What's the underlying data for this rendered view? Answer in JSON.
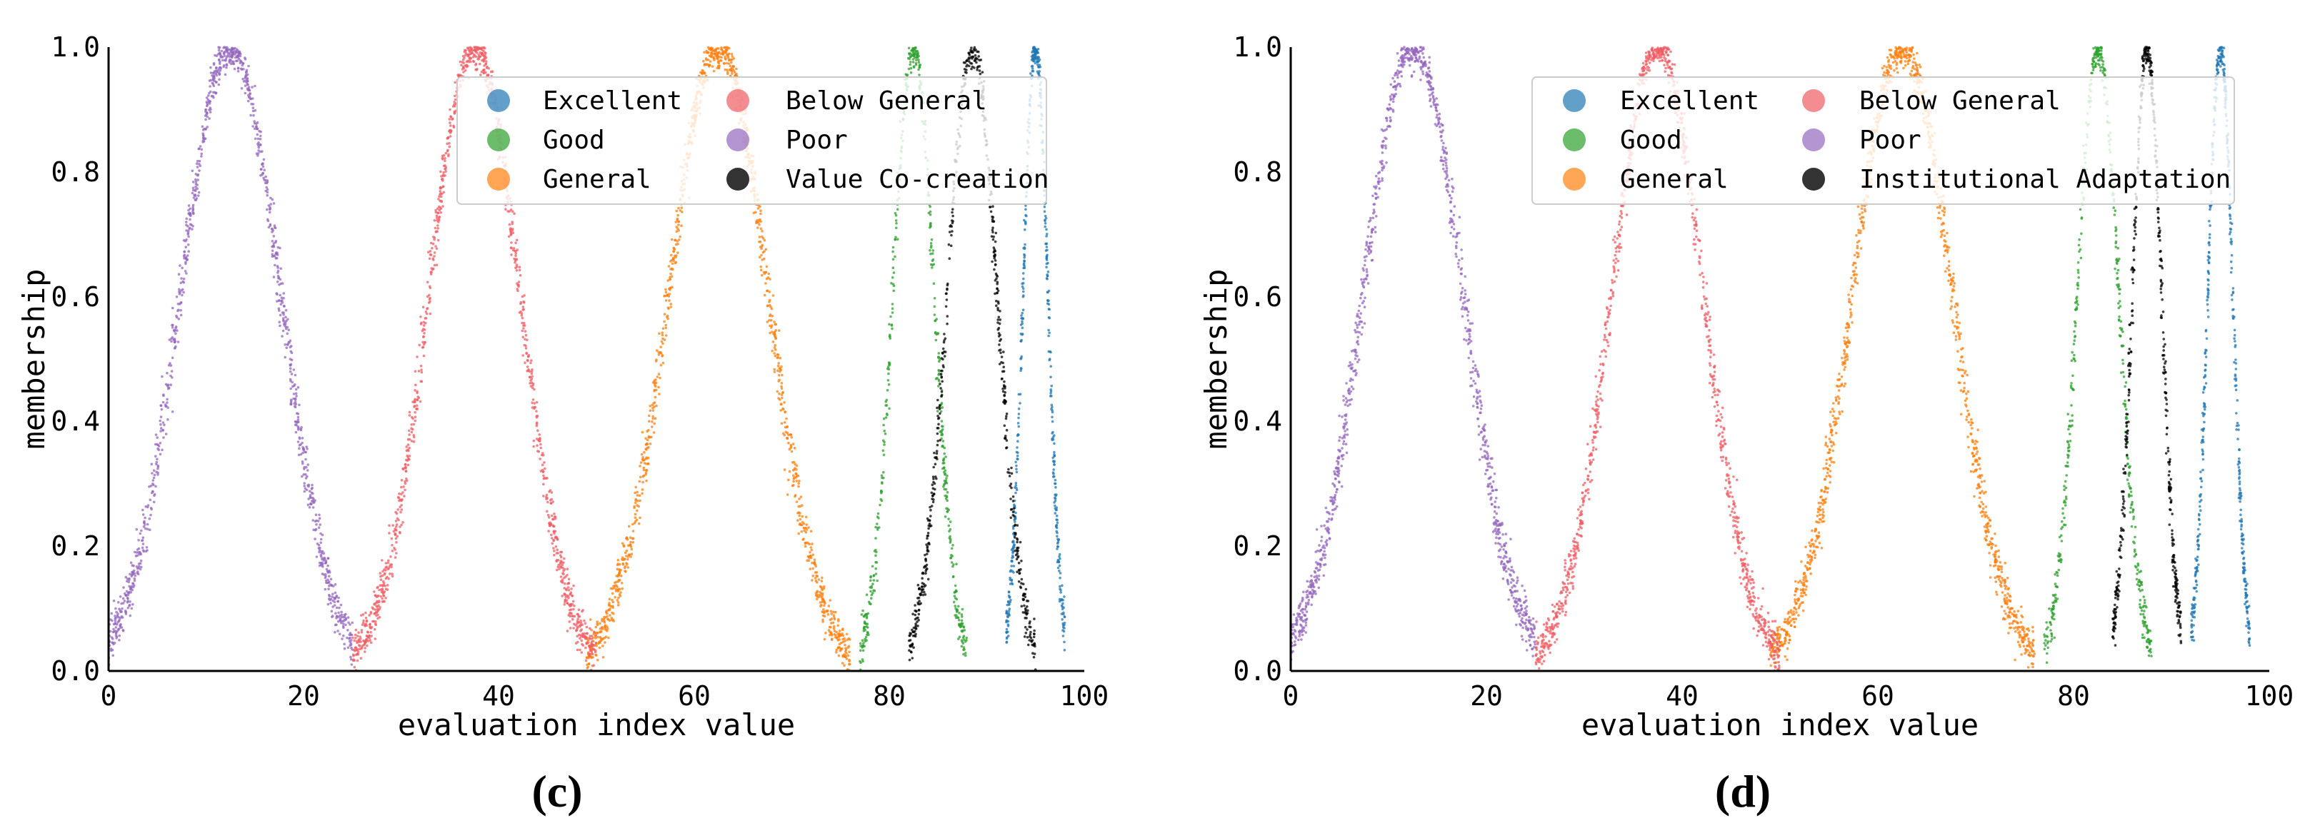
{
  "chart_data": [
    {
      "type": "scatter",
      "panel_label": "(c)",
      "xlabel": "evaluation index value",
      "ylabel": "membership",
      "xlim": [
        0,
        100
      ],
      "ylim": [
        0,
        1
      ],
      "xticks": [
        0,
        20,
        40,
        60,
        80,
        100
      ],
      "yticks": [
        0.0,
        0.2,
        0.4,
        0.6,
        0.8,
        1.0
      ],
      "xtick_labels": [
        "0",
        "20",
        "40",
        "60",
        "80",
        "100"
      ],
      "ytick_labels": [
        "0.0",
        "0.2",
        "0.4",
        "0.6",
        "0.8",
        "1.0"
      ],
      "grid": false,
      "legend_position": "top-right",
      "series": [
        {
          "name": "Excellent",
          "color": "#1f77b4",
          "center": 95,
          "spread": 3,
          "range": [
            92,
            98
          ]
        },
        {
          "name": "Good",
          "color": "#2ca02c",
          "center": 82.5,
          "spread": 5,
          "range": [
            77,
            88
          ]
        },
        {
          "name": "General",
          "color": "#ff7f0e",
          "center": 62.5,
          "spread": 12,
          "range": [
            49,
            76
          ]
        },
        {
          "name": "Below General",
          "color": "#ef5d64",
          "center": 37.5,
          "spread": 11,
          "range": [
            25,
            50
          ]
        },
        {
          "name": "Poor",
          "color": "#9467bd",
          "center": 12.5,
          "spread": 12,
          "range": [
            0,
            25
          ]
        },
        {
          "name": "Value Co-creation",
          "color": "#000000",
          "center": 88.5,
          "spread": 6,
          "range": [
            82,
            95
          ]
        }
      ]
    },
    {
      "type": "scatter",
      "panel_label": "(d)",
      "xlabel": "evaluation index value",
      "ylabel": "membership",
      "xlim": [
        0,
        100
      ],
      "ylim": [
        0,
        1
      ],
      "xticks": [
        0,
        20,
        40,
        60,
        80,
        100
      ],
      "yticks": [
        0.0,
        0.2,
        0.4,
        0.6,
        0.8,
        1.0
      ],
      "xtick_labels": [
        "0",
        "20",
        "40",
        "60",
        "80",
        "100"
      ],
      "ytick_labels": [
        "0.0",
        "0.2",
        "0.4",
        "0.6",
        "0.8",
        "1.0"
      ],
      "grid": false,
      "legend_position": "top-right",
      "series": [
        {
          "name": "Excellent",
          "color": "#1f77b4",
          "center": 95,
          "spread": 3,
          "range": [
            92,
            98
          ]
        },
        {
          "name": "Good",
          "color": "#2ca02c",
          "center": 82.5,
          "spread": 5,
          "range": [
            77,
            88
          ]
        },
        {
          "name": "General",
          "color": "#ff7f0e",
          "center": 62.5,
          "spread": 12,
          "range": [
            49,
            76
          ]
        },
        {
          "name": "Below General",
          "color": "#ef5d64",
          "center": 37.5,
          "spread": 11,
          "range": [
            25,
            50
          ]
        },
        {
          "name": "Poor",
          "color": "#9467bd",
          "center": 12.5,
          "spread": 12,
          "range": [
            0,
            25
          ]
        },
        {
          "name": "Institutional Adaptation",
          "color": "#000000",
          "center": 87.5,
          "spread": 3.5,
          "range": [
            84,
            91
          ]
        }
      ]
    }
  ]
}
